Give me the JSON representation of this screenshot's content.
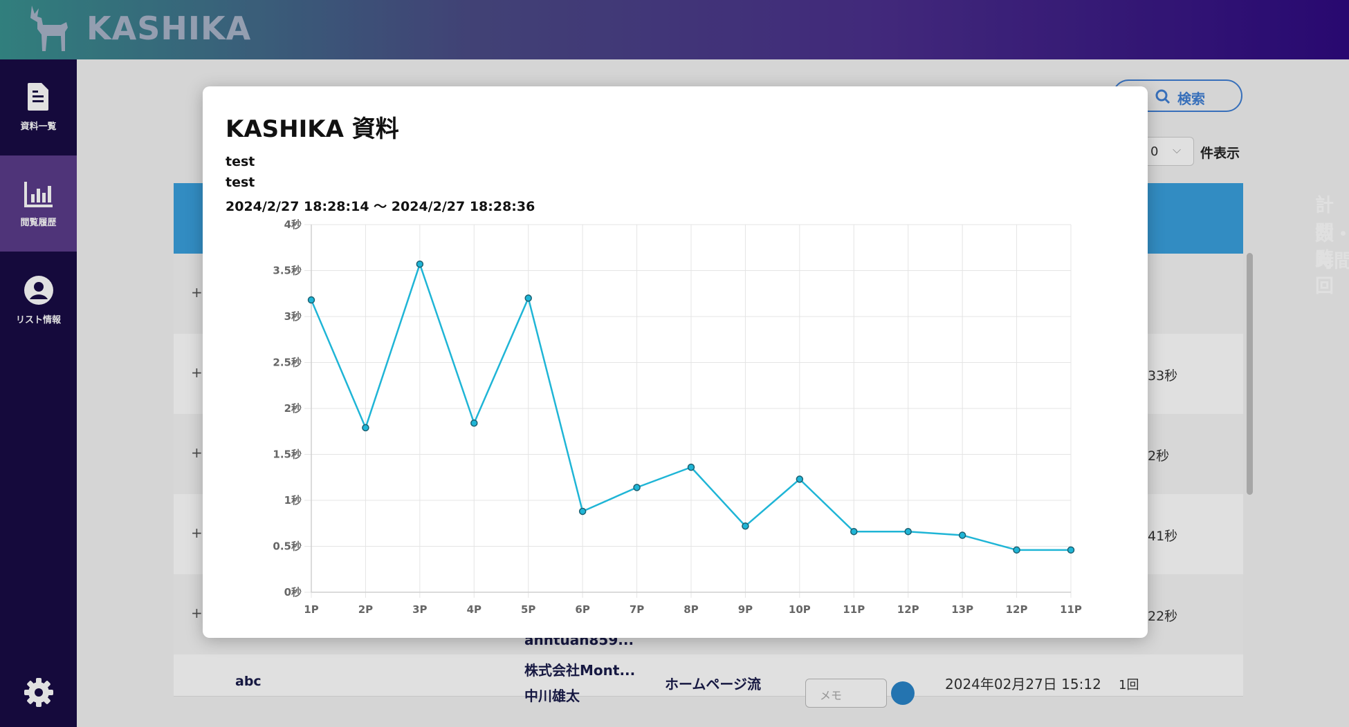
{
  "app": {
    "logo_text": "KASHIKA"
  },
  "sidebar": {
    "items": [
      {
        "label": "資料一覧",
        "icon": "document-icon"
      },
      {
        "label": "閲覧履歴",
        "icon": "bar-chart-icon",
        "active": true
      },
      {
        "label": "リスト情報",
        "icon": "user-icon"
      }
    ],
    "settings_icon": "gear-icon"
  },
  "background": {
    "search_label": "検索",
    "per_page_value": "0",
    "per_page_suffix": "件表示",
    "header_line1": "計閲覧回",
    "header_line2": "数・時間",
    "row_times": [
      "33秒",
      "2秒",
      "41秒",
      "22秒"
    ],
    "last_row": {
      "name": "abc",
      "email": "anhtuan859...",
      "company": "株式会社Mont...",
      "person": "中川雄太",
      "source": "ホームページ流",
      "memo_placeholder": "メモ",
      "datetime": "2024年02月27日 15:12",
      "count": "1回"
    }
  },
  "modal": {
    "title": "KASHIKA 資料",
    "line1": "test",
    "line2": "test",
    "range": "2024/2/27 18:28:14 〜 2024/2/27 18:28:36"
  },
  "colors": {
    "accent": "#3aa0dd",
    "sidebar_bg": "#180c45",
    "sidebar_active": "#5b3c8a",
    "line": "#1fb5d6"
  },
  "chart_data": {
    "type": "line",
    "categories": [
      "1P",
      "2P",
      "3P",
      "4P",
      "5P",
      "6P",
      "7P",
      "8P",
      "9P",
      "10P",
      "11P",
      "12P",
      "13P",
      "12P",
      "11P"
    ],
    "values": [
      3.18,
      1.79,
      3.57,
      1.84,
      3.2,
      0.88,
      1.14,
      1.36,
      0.72,
      1.23,
      0.66,
      0.66,
      0.62,
      0.46,
      0.46
    ],
    "ylim": [
      0,
      4
    ],
    "yticks": [
      {
        "v": 0,
        "label": "0秒"
      },
      {
        "v": 0.5,
        "label": "0.5秒"
      },
      {
        "v": 1,
        "label": "1秒"
      },
      {
        "v": 1.5,
        "label": "1.5秒"
      },
      {
        "v": 2,
        "label": "2秒"
      },
      {
        "v": 2.5,
        "label": "2.5秒"
      },
      {
        "v": 3,
        "label": "3秒"
      },
      {
        "v": 3.5,
        "label": "3.5秒"
      },
      {
        "v": 4,
        "label": "4秒"
      }
    ],
    "grid": true,
    "legend": "none"
  }
}
